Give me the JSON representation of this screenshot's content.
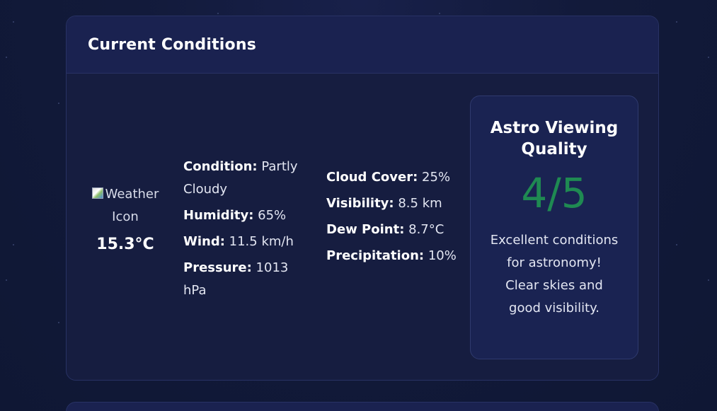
{
  "current_conditions": {
    "title": "Current Conditions",
    "weather_icon_alt": "Weather Icon",
    "temperature": "15.3°C",
    "details_left": [
      {
        "label": "Condition:",
        "value": "Partly Cloudy"
      },
      {
        "label": "Humidity:",
        "value": "65%"
      },
      {
        "label": "Wind:",
        "value": "11.5 km/h"
      },
      {
        "label": "Pressure:",
        "value": "1013 hPa"
      }
    ],
    "details_right": [
      {
        "label": "Cloud Cover:",
        "value": "25%"
      },
      {
        "label": "Visibility:",
        "value": "8.5 km"
      },
      {
        "label": "Dew Point:",
        "value": "8.7°C"
      },
      {
        "label": "Precipitation:",
        "value": "10%"
      }
    ],
    "astro": {
      "title": "Astro Viewing Quality",
      "score": "4/5",
      "description": "Excellent conditions for astronomy! Clear skies and good visibility.",
      "score_color": "#1f8a52"
    }
  }
}
